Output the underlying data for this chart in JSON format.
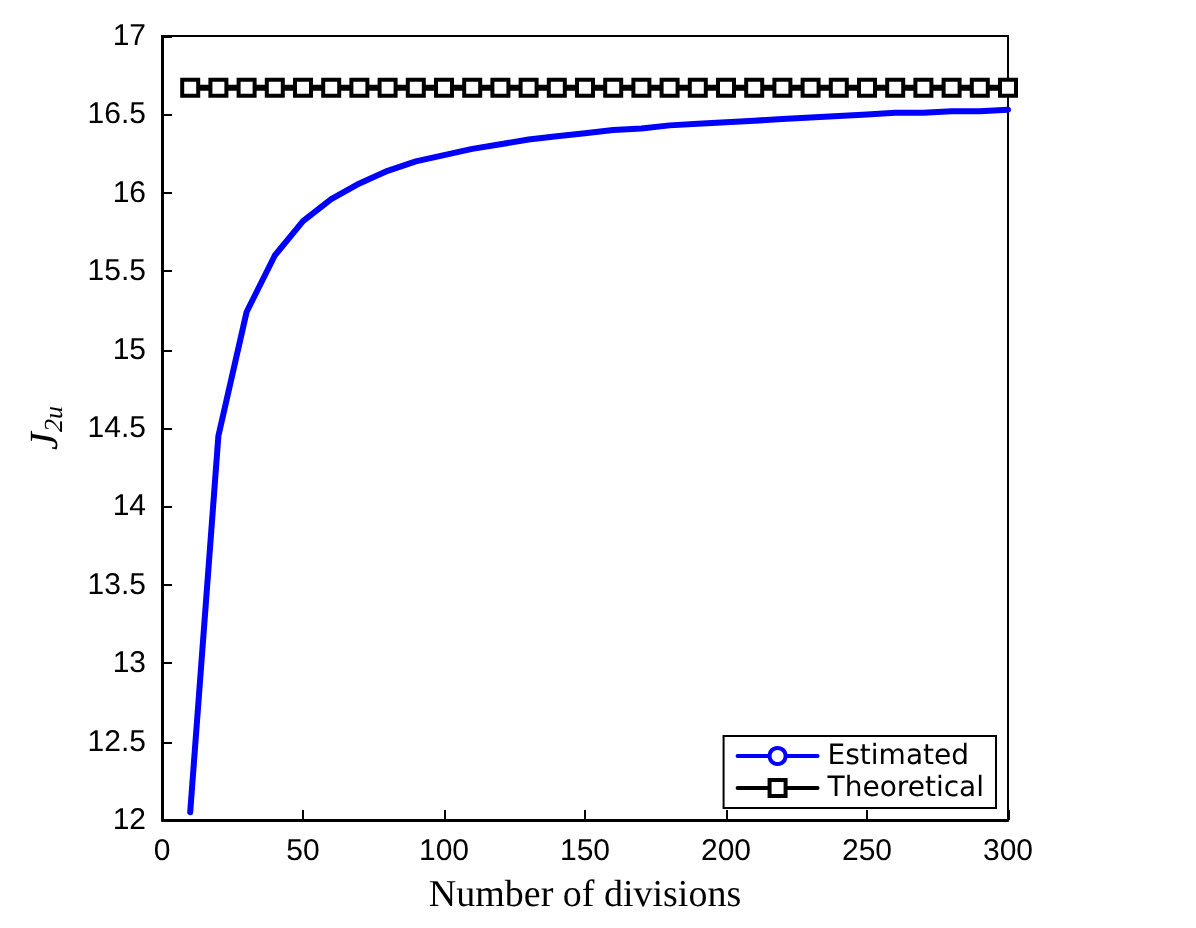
{
  "chart_data": {
    "type": "line",
    "xlabel": "Number of divisions",
    "ylabel": "J$_{2u}$",
    "x": [
      10,
      20,
      30,
      40,
      50,
      60,
      70,
      80,
      90,
      100,
      110,
      120,
      130,
      140,
      150,
      160,
      170,
      180,
      190,
      200,
      210,
      220,
      230,
      240,
      250,
      260,
      270,
      280,
      290,
      300
    ],
    "series": [
      {
        "name": "Estimated",
        "color": "#0000ff",
        "marker": "none",
        "values": [
          12.05,
          14.45,
          15.24,
          15.6,
          15.82,
          15.96,
          16.06,
          16.14,
          16.2,
          16.24,
          16.28,
          16.31,
          16.34,
          16.36,
          16.38,
          16.4,
          16.41,
          16.43,
          16.44,
          16.45,
          16.46,
          16.47,
          16.48,
          16.49,
          16.5,
          16.51,
          16.51,
          16.52,
          16.52,
          16.53
        ]
      },
      {
        "name": "Theoretical",
        "color": "#000000",
        "marker": "square",
        "values": [
          16.67,
          16.67,
          16.67,
          16.67,
          16.67,
          16.67,
          16.67,
          16.67,
          16.67,
          16.67,
          16.67,
          16.67,
          16.67,
          16.67,
          16.67,
          16.67,
          16.67,
          16.67,
          16.67,
          16.67,
          16.67,
          16.67,
          16.67,
          16.67,
          16.67,
          16.67,
          16.67,
          16.67,
          16.67,
          16.67
        ]
      }
    ],
    "xlim": [
      0,
      300
    ],
    "xticks": [
      0,
      50,
      100,
      150,
      200,
      250,
      300
    ],
    "ylim": [
      12,
      17
    ],
    "yticks": [
      12,
      12.5,
      13,
      13.5,
      14,
      14.5,
      15,
      15.5,
      16,
      16.5,
      17
    ],
    "grid": false,
    "legend": "bottom right",
    "line_style": "solid"
  }
}
